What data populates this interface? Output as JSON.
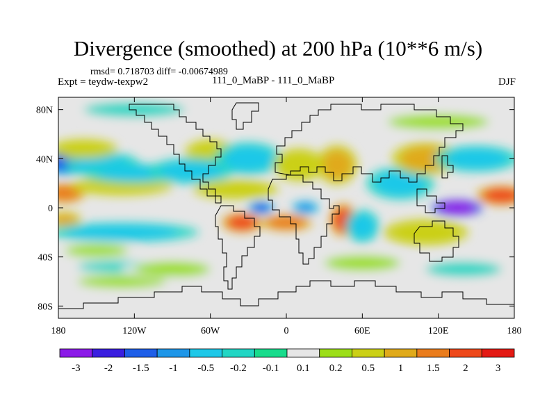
{
  "chart_data": {
    "type": "heatmap",
    "title": "Divergence (smoothed) at 200 hPa (10**6 m/s)",
    "stats_text": "rmsd= 0.718703  diff= -0.00674989",
    "left_label": "Expt = teydw-texpw2",
    "center_label": "111_0_MaBP - 111_0_MaBP",
    "right_label": "DJF",
    "xlim": [
      -180,
      180
    ],
    "ylim": [
      -90,
      90
    ],
    "x_ticks": [
      {
        "value": -180,
        "label": "180"
      },
      {
        "value": -120,
        "label": "120W"
      },
      {
        "value": -60,
        "label": "60W"
      },
      {
        "value": 0,
        "label": "0"
      },
      {
        "value": 60,
        "label": "60E"
      },
      {
        "value": 120,
        "label": "120E"
      },
      {
        "value": 180,
        "label": "180"
      }
    ],
    "y_ticks": [
      {
        "value": 80,
        "label": "80N"
      },
      {
        "value": 40,
        "label": "40N"
      },
      {
        "value": 0,
        "label": "0"
      },
      {
        "value": -40,
        "label": "40S"
      },
      {
        "value": -80,
        "label": "80S"
      }
    ],
    "colorbar": {
      "labels": [
        "-3",
        "-2",
        "-1.5",
        "-1",
        "-0.5",
        "-0.2",
        "-0.1",
        "0.1",
        "0.2",
        "0.5",
        "1",
        "1.5",
        "2",
        "3"
      ],
      "colors": [
        "#8b1ae8",
        "#3a1ee0",
        "#1e5ee8",
        "#1e96e8",
        "#1ec8e8",
        "#22d6c4",
        "#18dc8c",
        "#e6e6e6",
        "#9cde18",
        "#cbd016",
        "#e0aa1a",
        "#ea7c1c",
        "#ee481a",
        "#e41a14"
      ]
    },
    "blobs": [
      {
        "lon": -175,
        "lat": 37,
        "value": -1.5,
        "rlon": 14,
        "rlat": 8
      },
      {
        "lon": -145,
        "lat": 35,
        "value": -0.5,
        "rlon": 22,
        "rlat": 8
      },
      {
        "lon": -175,
        "lat": 12,
        "value": 1.5,
        "rlon": 12,
        "rlat": 6
      },
      {
        "lon": -130,
        "lat": 18,
        "value": 0.5,
        "rlon": 30,
        "rlat": 6
      },
      {
        "lon": -160,
        "lat": 48,
        "value": 0.5,
        "rlon": 20,
        "rlat": 6
      },
      {
        "lon": -120,
        "lat": 28,
        "value": -0.5,
        "rlon": 30,
        "rlat": 6
      },
      {
        "lon": -175,
        "lat": -10,
        "value": 1,
        "rlon": 10,
        "rlat": 5
      },
      {
        "lon": -130,
        "lat": -20,
        "value": -0.5,
        "rlon": 45,
        "rlat": 6
      },
      {
        "lon": -150,
        "lat": -35,
        "value": 0.2,
        "rlon": 25,
        "rlat": 5
      },
      {
        "lon": -130,
        "lat": -48,
        "value": -0.2,
        "rlon": 35,
        "rlat": 5
      },
      {
        "lon": -130,
        "lat": -60,
        "value": 0.2,
        "rlon": 35,
        "rlat": 5
      },
      {
        "lon": -60,
        "lat": 45,
        "value": 0.5,
        "rlon": 15,
        "rlat": 8
      },
      {
        "lon": -75,
        "lat": 30,
        "value": -0.5,
        "rlon": 25,
        "rlat": 8
      },
      {
        "lon": -30,
        "lat": 40,
        "value": -0.5,
        "rlon": 20,
        "rlat": 10
      },
      {
        "lon": -40,
        "lat": 15,
        "value": 0.5,
        "rlon": 25,
        "rlat": 6
      },
      {
        "lon": -35,
        "lat": -12,
        "value": 2,
        "rlon": 12,
        "rlat": 6
      },
      {
        "lon": 0,
        "lat": -12,
        "value": 1.5,
        "rlon": 15,
        "rlat": 5
      },
      {
        "lon": -20,
        "lat": 0,
        "value": -1.5,
        "rlon": 8,
        "rlat": 4
      },
      {
        "lon": 15,
        "lat": 0,
        "value": -1,
        "rlon": 8,
        "rlat": 4
      },
      {
        "lon": 40,
        "lat": 35,
        "value": 1,
        "rlon": 12,
        "rlat": 12
      },
      {
        "lon": 10,
        "lat": 35,
        "value": 0.5,
        "rlon": 15,
        "rlat": 10
      },
      {
        "lon": 45,
        "lat": -10,
        "value": 2,
        "rlon": 8,
        "rlat": 10
      },
      {
        "lon": 60,
        "lat": -15,
        "value": -0.5,
        "rlon": 10,
        "rlat": 10
      },
      {
        "lon": 90,
        "lat": 20,
        "value": -0.5,
        "rlon": 20,
        "rlat": 10
      },
      {
        "lon": 110,
        "lat": 40,
        "value": 1,
        "rlon": 20,
        "rlat": 10
      },
      {
        "lon": 150,
        "lat": 40,
        "value": -0.5,
        "rlon": 25,
        "rlat": 8
      },
      {
        "lon": 135,
        "lat": 0,
        "value": -3,
        "rlon": 15,
        "rlat": 5
      },
      {
        "lon": 170,
        "lat": 10,
        "value": 2,
        "rlon": 15,
        "rlat": 6
      },
      {
        "lon": 110,
        "lat": -20,
        "value": 0.5,
        "rlon": 25,
        "rlat": 8
      },
      {
        "lon": 140,
        "lat": -50,
        "value": -0.2,
        "rlon": 30,
        "rlat": 6
      },
      {
        "lon": 60,
        "lat": -45,
        "value": 0.2,
        "rlon": 30,
        "rlat": 6
      },
      {
        "lon": -90,
        "lat": -50,
        "value": 0.2,
        "rlon": 30,
        "rlat": 6
      },
      {
        "lon": 120,
        "lat": 70,
        "value": 0.2,
        "rlon": 40,
        "rlat": 6
      },
      {
        "lon": -120,
        "lat": 80,
        "value": -0.2,
        "rlon": 40,
        "rlat": 6
      }
    ]
  }
}
